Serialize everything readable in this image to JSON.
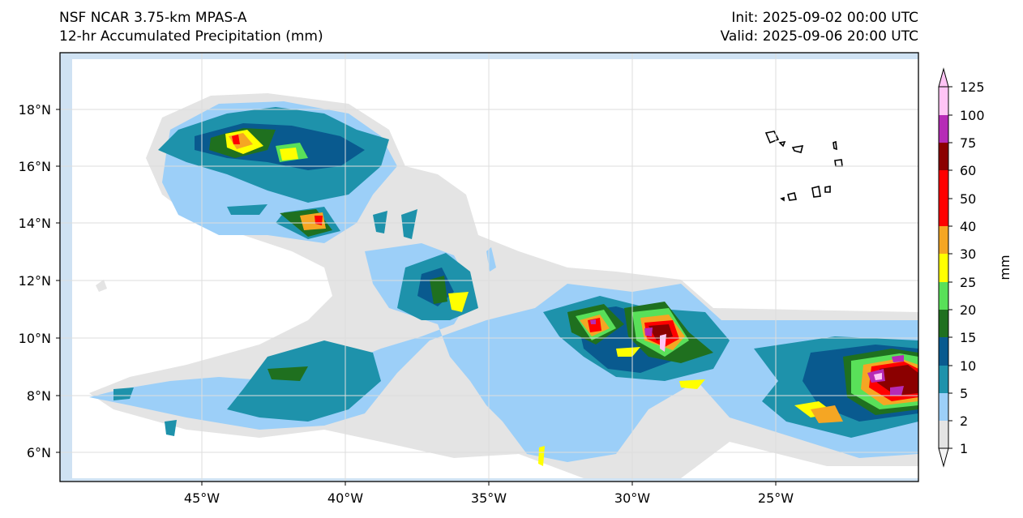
{
  "header": {
    "model": "NSF NCAR 3.75-km MPAS-A",
    "field": "12-hr Accumulated Precipitation (mm)",
    "init": "Init: 2025-09-02 00:00 UTC",
    "valid": "Valid: 2025-09-06 20:00 UTC"
  },
  "map": {
    "lon_labels": [
      "45°W",
      "40°W",
      "35°W",
      "30°W",
      "25°W"
    ],
    "lat_labels": [
      "18°N",
      "16°N",
      "14°N",
      "12°N",
      "10°N",
      "8°N",
      "6°N"
    ],
    "colors": {
      "ocean_frame": "#cfe2f3",
      "grid": "#dddddd",
      "coast": "#000000"
    }
  },
  "colorbar": {
    "label": "mm",
    "levels": [
      "1",
      "2",
      "5",
      "10",
      "15",
      "20",
      "25",
      "30",
      "40",
      "50",
      "60",
      "75",
      "100",
      "125"
    ],
    "colors": [
      "#f4f4f4",
      "#e4e4e4",
      "#9ccff8",
      "#1e92ab",
      "#095a8f",
      "#1f701f",
      "#59e059",
      "#ffff00",
      "#f5a623",
      "#ff0000",
      "#8b0000",
      "#b62bb6",
      "#ffc4f5"
    ]
  }
}
